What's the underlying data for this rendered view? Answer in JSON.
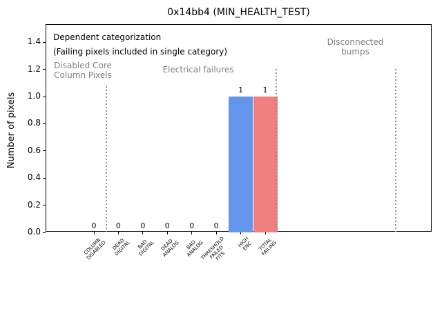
{
  "figure": {
    "title": "0x14bb4 (MIN_HEALTH_TEST)",
    "ylabel": "Number of pixels"
  },
  "annotations": {
    "heading": "Dependent categorization",
    "subheading": "(Failing pixels included in single category)",
    "regions": {
      "disabled_core": "Disabled Core\nColumn Pixels",
      "electrical": "Electrical failures",
      "disconnected": "Disconnected\nbumps"
    }
  },
  "colors": {
    "bar_blue": "#6495ed",
    "bar_red": "#f08080",
    "annotation_gray": "#808080",
    "separator_gray": "#8c8c8c"
  },
  "chart_data": {
    "type": "bar",
    "title": "0x14bb4 (MIN_HEALTH_TEST)",
    "xlabel": "",
    "ylabel": "Number of pixels",
    "categories": [
      "COLUMN\nDISABLED",
      "DEAD\nDIGITAL",
      "BAD\nDIGITAL",
      "DEAD\nANALOG",
      "BAD\nANALOG",
      "THRESHOLD\nFAILED\nFITS",
      "HIGH\nENC",
      "TOTAL\nFAILING"
    ],
    "values": [
      0,
      0,
      0,
      0,
      0,
      0,
      1,
      1
    ],
    "bar_labels": [
      "0",
      "0",
      "0",
      "0",
      "0",
      "0",
      "1",
      "1"
    ],
    "bar_colors": [
      "#6495ed",
      "#6495ed",
      "#6495ed",
      "#6495ed",
      "#6495ed",
      "#6495ed",
      "#6495ed",
      "#f08080"
    ],
    "yticks": [
      "0.0",
      "0.2",
      "0.4",
      "0.6",
      "0.8",
      "1.0",
      "1.2",
      "1.4"
    ],
    "ylim": [
      0,
      1.5
    ],
    "grid": false,
    "legend": null,
    "region_labels": [
      "Disabled Core\nColumn Pixels",
      "Electrical failures",
      "Disconnected\nbumps"
    ]
  }
}
